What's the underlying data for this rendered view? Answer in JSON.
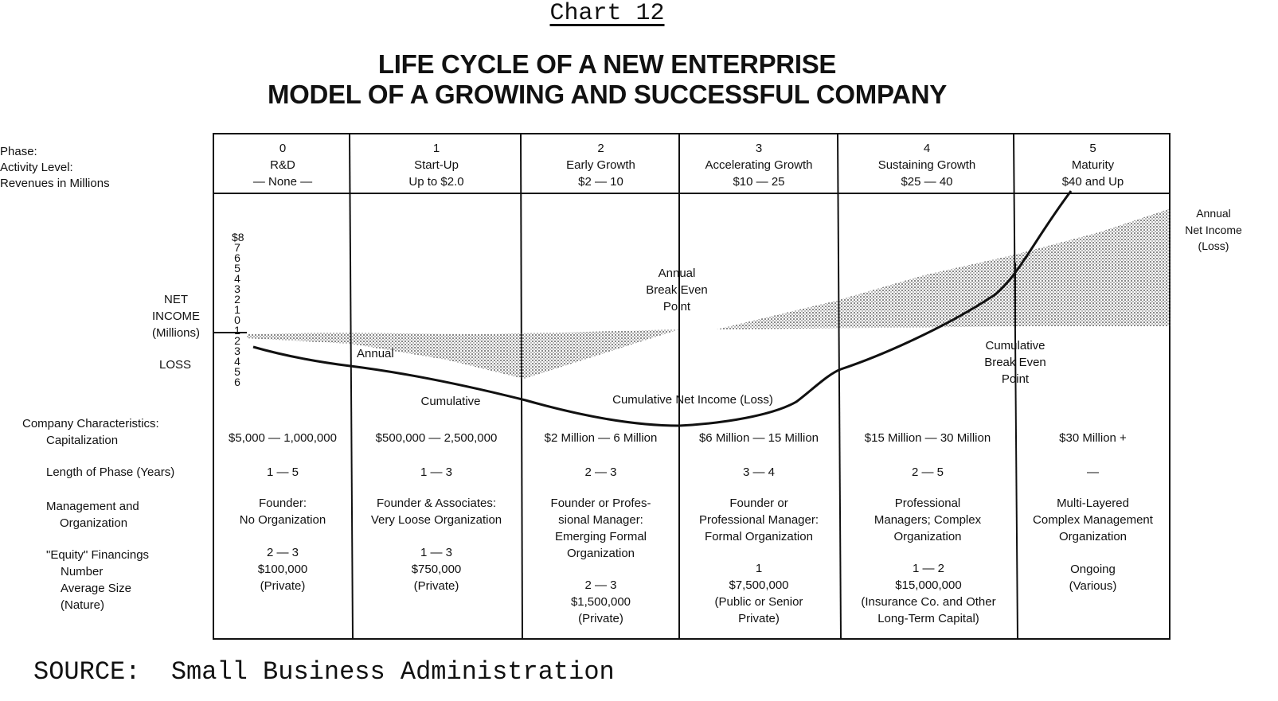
{
  "chart_label": "Chart 12",
  "title": [
    "LIFE CYCLE OF A NEW ENTERPRISE",
    "MODEL OF A GROWING AND SUCCESSFUL COMPANY"
  ],
  "header_labels": [
    "Phase:",
    "Activity Level:",
    "Revenues in Millions"
  ],
  "phases": [
    {
      "number": "0",
      "name": "R&D",
      "revenue": "— None —"
    },
    {
      "number": "1",
      "name": "Start-Up",
      "revenue": "Up to $2.0"
    },
    {
      "number": "2",
      "name": "Early Growth",
      "revenue": "$2 — 10"
    },
    {
      "number": "3",
      "name": "Accelerating Growth",
      "revenue": "$10 — 25"
    },
    {
      "number": "4",
      "name": "Sustaining Growth",
      "revenue": "$25 — 40"
    },
    {
      "number": "5",
      "name": "Maturity",
      "revenue": "$40 and Up"
    }
  ],
  "axis": {
    "net_income_label": [
      "NET",
      "INCOME",
      "(Millions)"
    ],
    "loss_label": "LOSS",
    "scale": [
      "$8",
      "7",
      "6",
      "5",
      "4",
      "3",
      "2",
      "1",
      "0",
      "1",
      "2",
      "3",
      "4",
      "5",
      "6"
    ]
  },
  "chart_labels": {
    "annual_right": [
      "Annual",
      "Net Income",
      "(Loss)"
    ],
    "annual_break_even": [
      "Annual",
      "Break Even",
      "Point"
    ],
    "annual": "Annual",
    "cumulative": "Cumulative",
    "cumulative_net_income": "Cumulative Net Income (Loss)",
    "cumulative_break_even": [
      "Cumulative",
      "Break Even",
      "Point"
    ]
  },
  "row_labels": {
    "characteristics": [
      "Company Characteristics:",
      "Capitalization"
    ],
    "length": "Length of Phase (Years)",
    "management": [
      "Management and",
      "Organization"
    ],
    "equity": [
      "\"Equity\" Financings",
      "Number",
      "Average Size",
      "(Nature)"
    ]
  },
  "capitalization": [
    "$5,000 — 1,000,000",
    "$500,000 — 2,500,000",
    "$2 Million — 6 Million",
    "$6 Million — 15 Million",
    "$15 Million — 30 Million",
    "$30 Million +"
  ],
  "length": [
    "1 — 5",
    "1 — 3",
    "2 — 3",
    "3 — 4",
    "2 — 5",
    "—"
  ],
  "management": [
    [
      "Founder:",
      "No Organization"
    ],
    [
      "Founder & Associates:",
      "Very Loose Organization"
    ],
    [
      "Founder or Profes-",
      "sional Manager:",
      "Emerging Formal",
      "Organization"
    ],
    [
      "Founder or",
      "Professional Manager:",
      "Formal Organization"
    ],
    [
      "Professional",
      "Managers; Complex",
      "Organization"
    ],
    [
      "Multi-Layered",
      "Complex Management",
      "Organization"
    ]
  ],
  "equity": [
    [
      "2 — 3",
      "$100,000",
      "(Private)"
    ],
    [
      "1 — 3",
      "$750,000",
      "(Private)"
    ],
    [
      "2 — 3",
      "$1,500,000",
      "(Private)"
    ],
    [
      "1",
      "$7,500,000",
      "(Public or Senior",
      "Private)"
    ],
    [
      "1 — 2",
      "$15,000,000",
      "(Insurance Co. and Other",
      "Long-Term Capital)"
    ],
    [
      "Ongoing",
      "(Various)"
    ]
  ],
  "source": "SOURCE:  Small Business Administration"
}
